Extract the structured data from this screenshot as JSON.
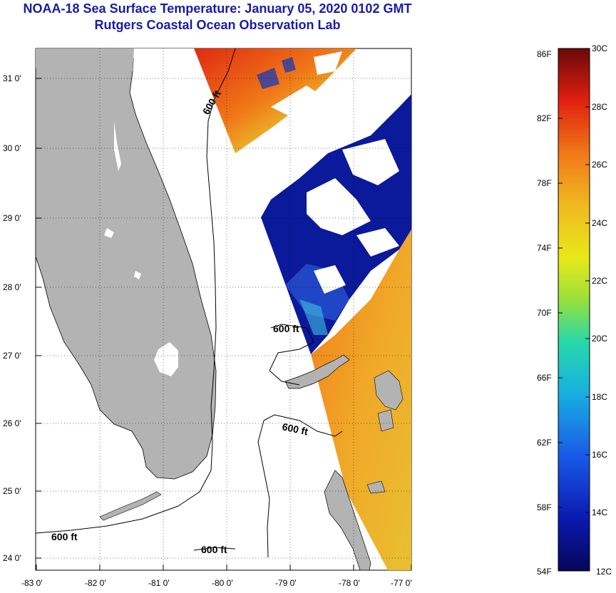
{
  "title_line1": "NOAA-18 Sea Surface Temperature:  January 05, 2020 0102 GMT",
  "title_line2": "Rutgers Coastal Ocean Observation Lab",
  "axes": {
    "lat_labels": [
      "31 0'",
      "30 0'",
      "29 0'",
      "28 0'",
      "27 0'",
      "26 0'",
      "25 0'",
      "24 0'"
    ],
    "lon_labels": [
      "-83 0'",
      "-82 0'",
      "-81 0'",
      "-80 0'",
      "-79 0'",
      "-78 0'",
      "-77 0'"
    ]
  },
  "isobath_labels": [
    "600 ft",
    "600 ft",
    "600 ft",
    "600 ft",
    "600 ft"
  ],
  "colorbar": {
    "fahrenheit": [
      "86F",
      "82F",
      "78F",
      "74F",
      "70F",
      "66F",
      "62F",
      "58F",
      "54F"
    ],
    "celsius": [
      "30C",
      "28C",
      "26C",
      "24C",
      "22C",
      "20C",
      "18C",
      "16C",
      "14C",
      "12C"
    ]
  },
  "colors": {
    "title": "#1a1aa8",
    "land": "#b3b3b3",
    "warm": "#f0a020",
    "cold": "#0a1a9a"
  }
}
